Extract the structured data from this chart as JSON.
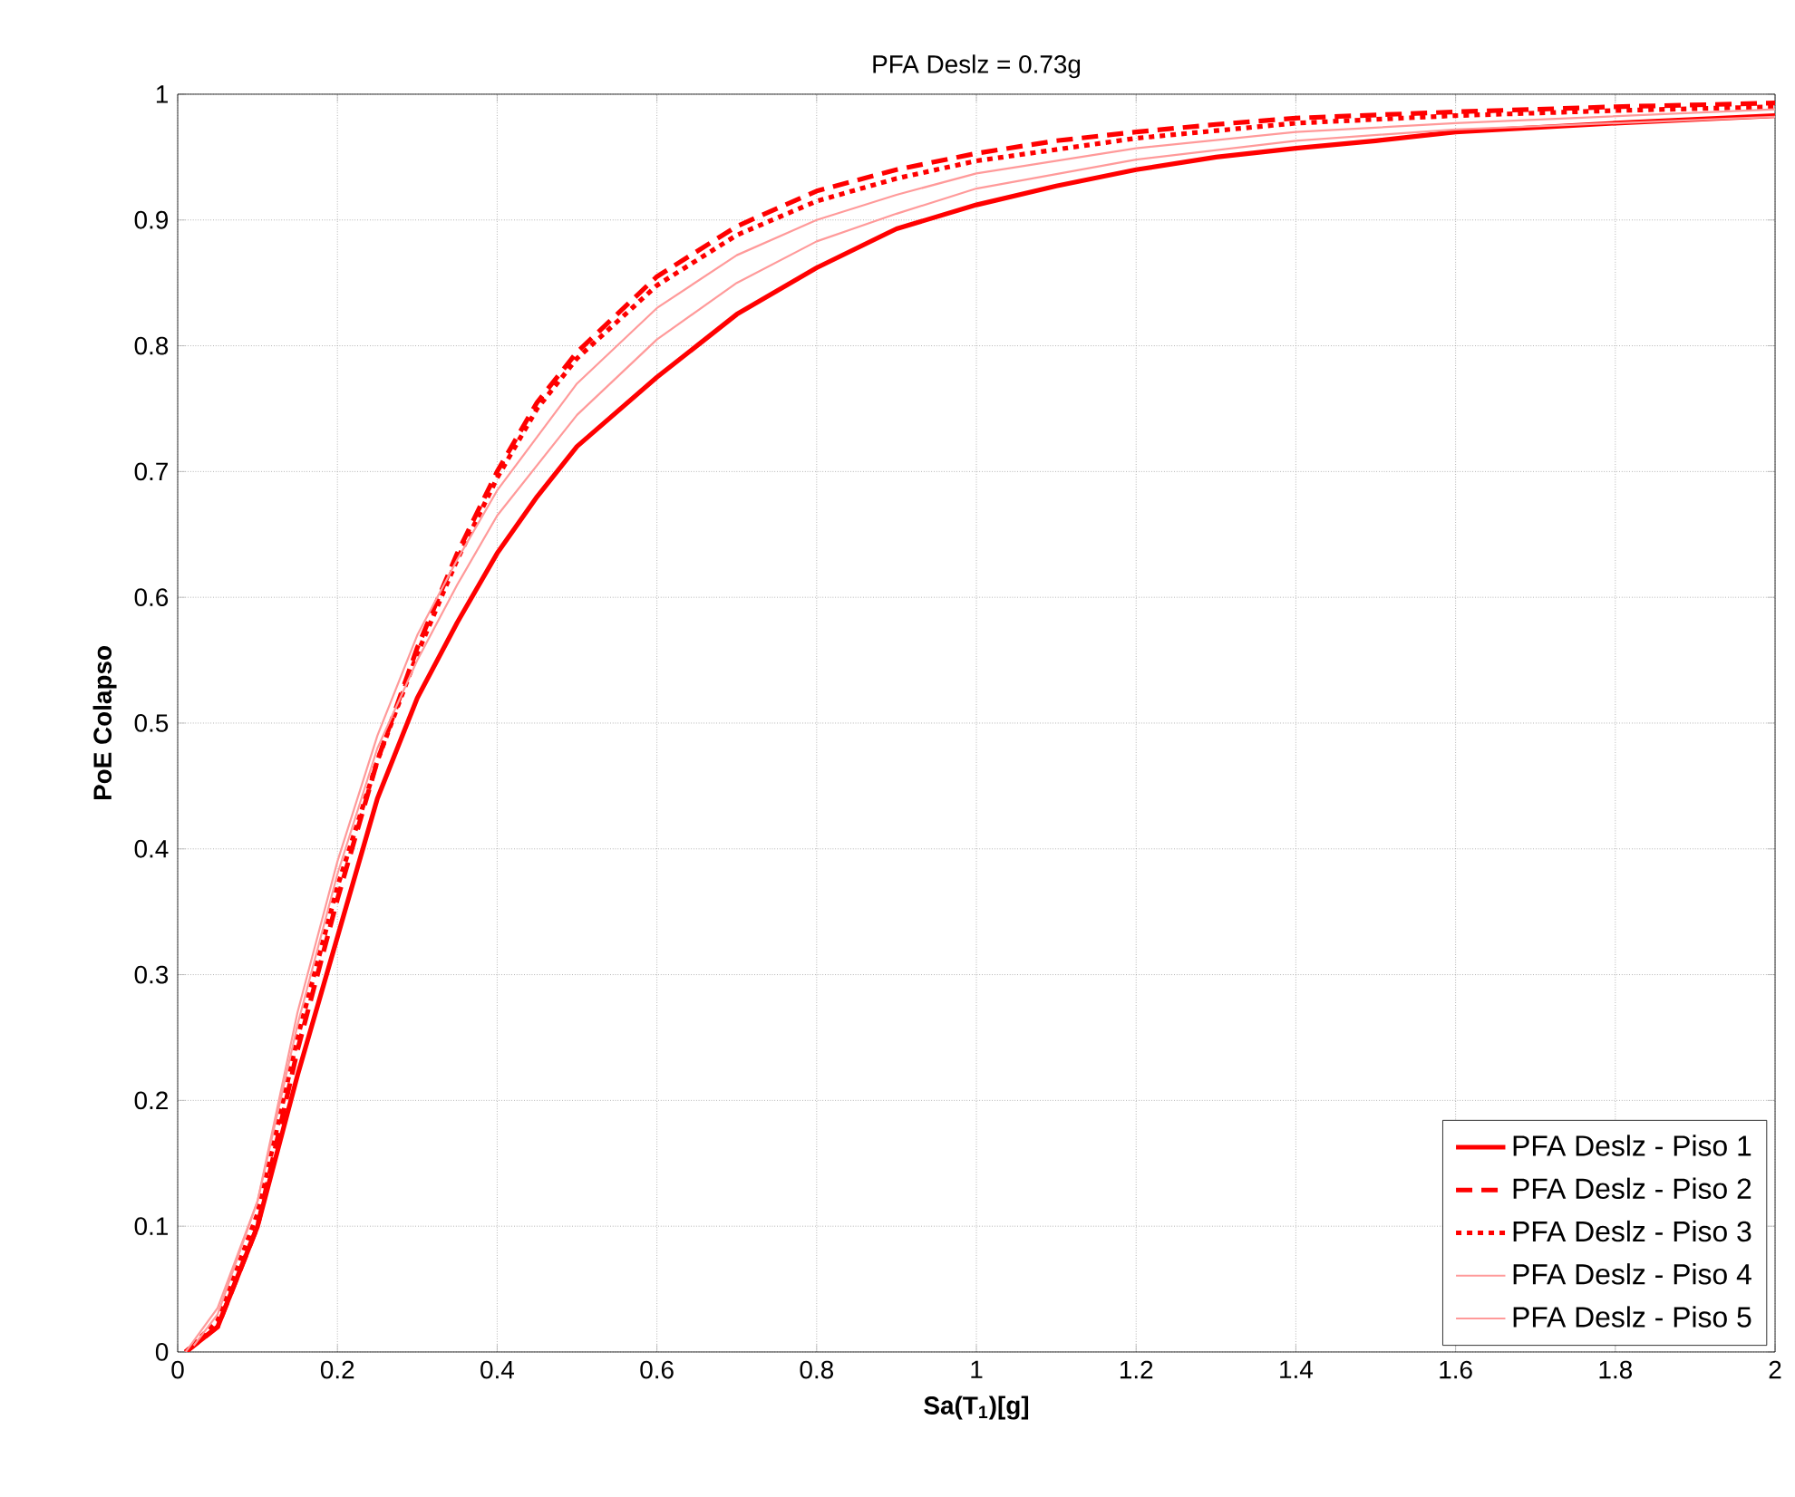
{
  "chart_data": {
    "type": "line",
    "title": "PFA Deslz = 0.73g",
    "xlabel": "Sa(T$_{1}$)[g]",
    "ylabel": "PoE Colapso",
    "xlim": [
      0,
      2
    ],
    "ylim": [
      0,
      1
    ],
    "xticks": [
      0,
      0.2,
      0.4,
      0.6,
      0.8,
      1,
      1.2,
      1.4,
      1.6,
      1.8,
      2
    ],
    "yticks": [
      0,
      0.1,
      0.2,
      0.3,
      0.4,
      0.5,
      0.6,
      0.7,
      0.8,
      0.9,
      1
    ],
    "grid": true,
    "legend": "bottom right",
    "series": [
      {
        "name": "PFA Deslz - Piso 1",
        "color": "#ff0000",
        "line_style": "solid",
        "x": [
          0.01,
          0.05,
          0.1,
          0.15,
          0.2,
          0.25,
          0.3,
          0.35,
          0.4,
          0.45,
          0.5,
          0.6,
          0.7,
          0.8,
          0.9,
          1.0,
          1.1,
          1.2,
          1.3,
          1.4,
          1.5,
          1.6,
          1.8,
          2.0
        ],
        "values": [
          0,
          0.02,
          0.1,
          0.22,
          0.33,
          0.44,
          0.52,
          0.58,
          0.635,
          0.68,
          0.72,
          0.775,
          0.825,
          0.862,
          0.893,
          0.912,
          0.927,
          0.94,
          0.95,
          0.957,
          0.963,
          0.97,
          0.977,
          0.983
        ]
      },
      {
        "name": "PFA Deslz - Piso 2",
        "color": "#ff0000",
        "line_style": "dashed",
        "x": [
          0.01,
          0.05,
          0.1,
          0.15,
          0.2,
          0.25,
          0.3,
          0.35,
          0.4,
          0.45,
          0.5,
          0.6,
          0.7,
          0.8,
          0.9,
          1.0,
          1.1,
          1.2,
          1.3,
          1.4,
          1.6,
          1.8,
          2.0
        ],
        "values": [
          0,
          0.02,
          0.1,
          0.24,
          0.36,
          0.47,
          0.56,
          0.635,
          0.7,
          0.755,
          0.795,
          0.855,
          0.895,
          0.923,
          0.94,
          0.953,
          0.963,
          0.97,
          0.976,
          0.981,
          0.986,
          0.99,
          0.993
        ]
      },
      {
        "name": "PFA Deslz - Piso 3",
        "color": "#ff0000",
        "line_style": "dotted",
        "x": [
          0.01,
          0.05,
          0.1,
          0.15,
          0.2,
          0.25,
          0.3,
          0.35,
          0.4,
          0.45,
          0.5,
          0.6,
          0.7,
          0.8,
          0.9,
          1.0,
          1.2,
          1.4,
          1.6,
          1.8,
          2.0
        ],
        "values": [
          0,
          0.025,
          0.11,
          0.25,
          0.37,
          0.47,
          0.555,
          0.63,
          0.695,
          0.75,
          0.79,
          0.848,
          0.888,
          0.915,
          0.933,
          0.947,
          0.965,
          0.977,
          0.983,
          0.987,
          0.99
        ]
      },
      {
        "name": "PFA Deslz - Piso 4",
        "color": "#ff9a9a",
        "line_style": "solid",
        "x": [
          0.01,
          0.05,
          0.1,
          0.15,
          0.2,
          0.25,
          0.3,
          0.35,
          0.4,
          0.5,
          0.6,
          0.7,
          0.8,
          0.9,
          1.0,
          1.2,
          1.4,
          1.6,
          2.0
        ],
        "values": [
          0,
          0.035,
          0.12,
          0.27,
          0.39,
          0.49,
          0.57,
          0.63,
          0.685,
          0.77,
          0.83,
          0.872,
          0.9,
          0.92,
          0.937,
          0.957,
          0.97,
          0.977,
          0.988
        ]
      },
      {
        "name": "PFA Deslz - Piso 5",
        "color": "#ff9a9a",
        "line_style": "solid",
        "x": [
          0.02,
          0.05,
          0.1,
          0.15,
          0.2,
          0.25,
          0.3,
          0.35,
          0.4,
          0.5,
          0.6,
          0.7,
          0.8,
          0.9,
          1.0,
          1.2,
          1.4,
          1.6,
          2.0
        ],
        "values": [
          0.005,
          0.03,
          0.12,
          0.26,
          0.38,
          0.48,
          0.55,
          0.61,
          0.665,
          0.745,
          0.805,
          0.85,
          0.883,
          0.905,
          0.925,
          0.948,
          0.963,
          0.972,
          0.982
        ]
      }
    ]
  }
}
